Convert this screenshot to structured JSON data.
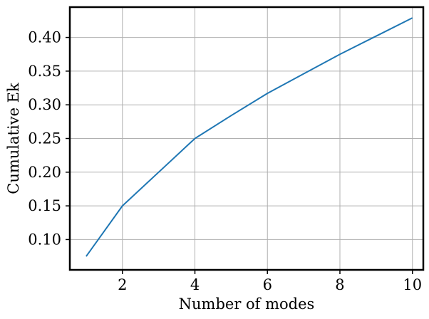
{
  "chart_data": {
    "type": "line",
    "title": "",
    "xlabel": "Number of modes",
    "ylabel": "Cumulative Ek",
    "xlim": [
      0.55,
      10.3
    ],
    "ylim": [
      0.055,
      0.445
    ],
    "xticks": [
      2,
      4,
      6,
      8,
      10
    ],
    "yticks": [
      0.1,
      0.15,
      0.2,
      0.25,
      0.3,
      0.35,
      0.4
    ],
    "xtick_labels": [
      "2",
      "4",
      "6",
      "8",
      "10"
    ],
    "ytick_labels": [
      "0.10",
      "0.15",
      "0.20",
      "0.25",
      "0.30",
      "0.35",
      "0.40"
    ],
    "grid": true,
    "series": [
      {
        "x": [
          1,
          2,
          3,
          4,
          5,
          6,
          7,
          8,
          9,
          10
        ],
        "values": [
          0.075,
          0.15,
          0.2,
          0.25,
          0.284,
          0.317,
          0.346,
          0.375,
          0.402,
          0.429
        ],
        "color": "#1f77b4"
      }
    ],
    "grid_color": "#b0b0b0",
    "axis_color": "#000000"
  }
}
